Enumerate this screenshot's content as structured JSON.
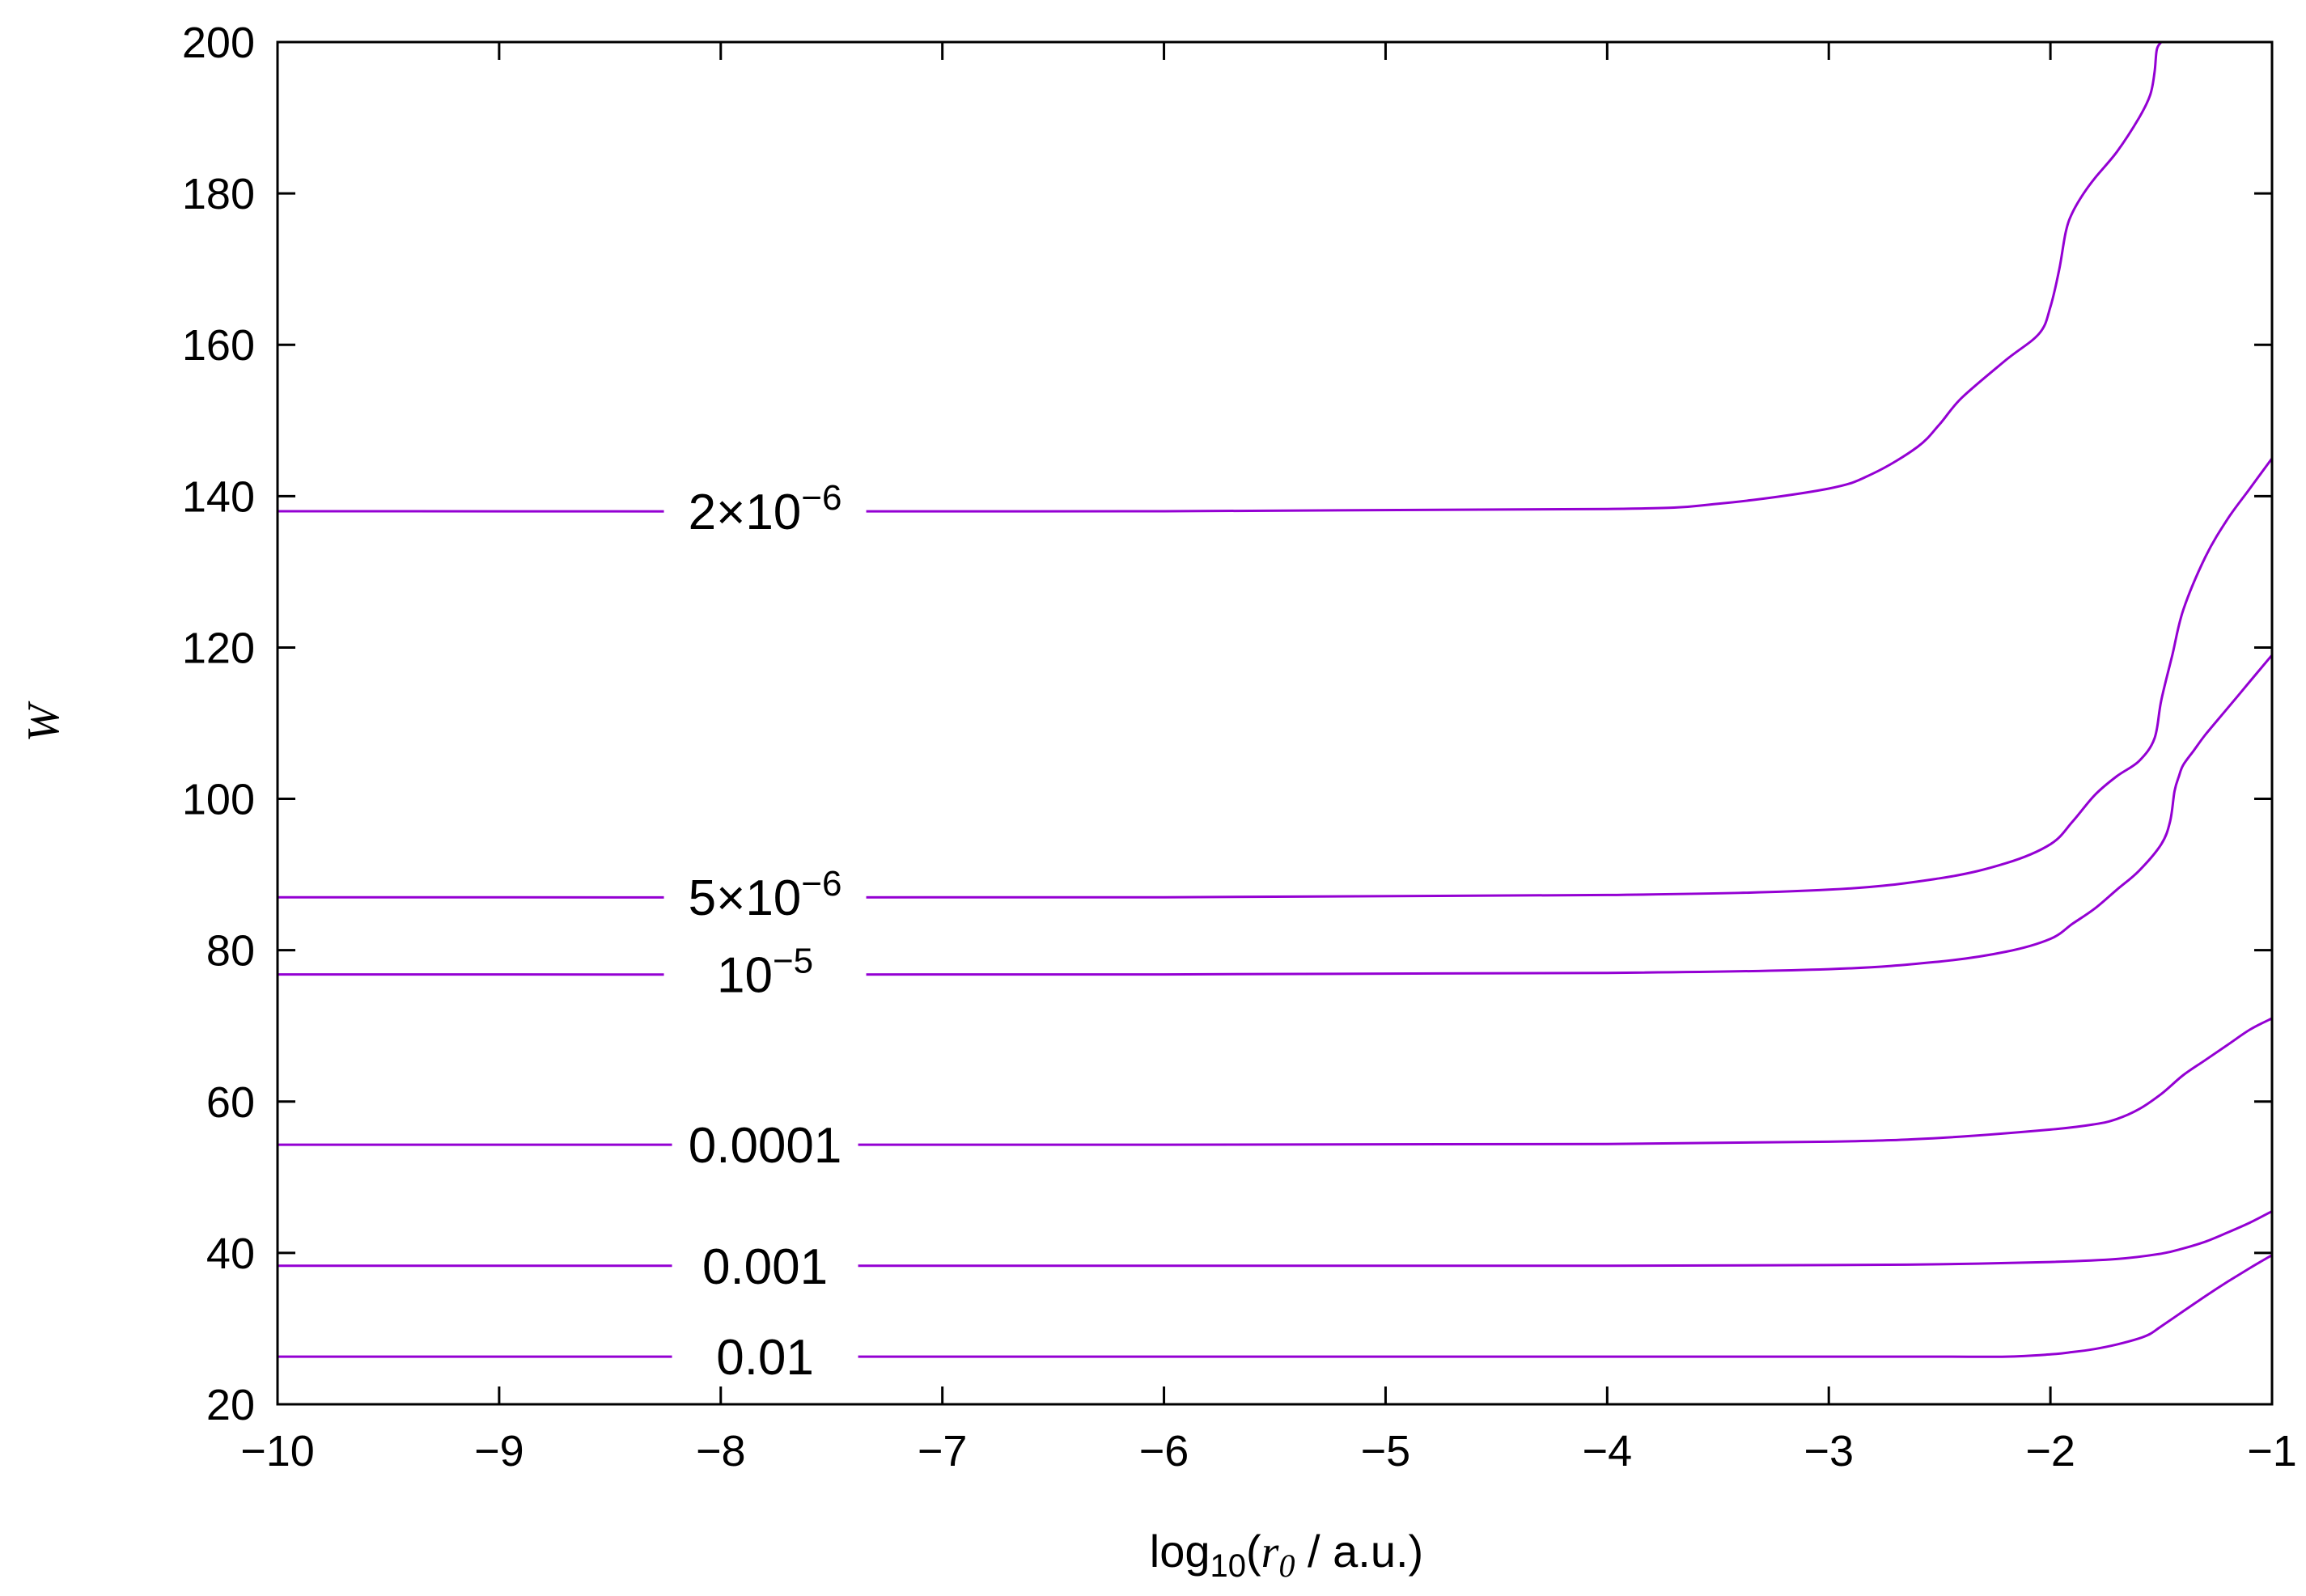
{
  "chart_data": {
    "type": "line",
    "xlabel": "log10(r0 / a.u.)",
    "xlabel_parts": {
      "pre": "log",
      "sub": "10",
      "open": "(",
      "var": "r",
      "varsub": "0",
      "post": " / a.u.)"
    },
    "ylabel": "W",
    "xlim": [
      -10,
      -1
    ],
    "ylim": [
      20,
      200
    ],
    "x_ticks": [
      -10,
      -9,
      -8,
      -7,
      -6,
      -5,
      -4,
      -3,
      -2,
      -1
    ],
    "x_tick_labels": [
      "−10",
      "−9",
      "−8",
      "−7",
      "−6",
      "−5",
      "−4",
      "−3",
      "−2",
      "−1"
    ],
    "y_ticks": [
      20,
      40,
      60,
      80,
      100,
      120,
      140,
      160,
      180,
      200
    ],
    "y_tick_labels": [
      "20",
      "40",
      "60",
      "80",
      "100",
      "120",
      "140",
      "160",
      "180",
      "200"
    ],
    "grid": false,
    "line_color": "#9400d3",
    "series": [
      {
        "label": {
          "base": "2×10",
          "exp": "−6"
        },
        "label_at": [
          -7.8,
          138
        ],
        "x": [
          -10,
          -6,
          -4,
          -3.5,
          -3,
          -2.8,
          -2.6,
          -2.5,
          -2.4,
          -2.2,
          -2.05,
          -2.0,
          -1.96,
          -1.93,
          -1.9,
          -1.85,
          -1.8,
          -1.7,
          -1.6,
          -1.55,
          -1.53,
          -1.52,
          -1.5
        ],
        "y": [
          138,
          138,
          138.3,
          139,
          141,
          143,
          146.5,
          149.5,
          153,
          158,
          161.5,
          165,
          170,
          175,
          177.5,
          180,
          182,
          185.5,
          190,
          193,
          196,
          199,
          200
        ]
      },
      {
        "label": {
          "base": "5×10",
          "exp": "−6"
        },
        "label_at": [
          -7.8,
          87
        ],
        "x": [
          -10,
          -6,
          -4,
          -3,
          -2.5,
          -2.2,
          -2.0,
          -1.9,
          -1.8,
          -1.7,
          -1.6,
          -1.53,
          -1.5,
          -1.45,
          -1.4,
          -1.3,
          -1.2,
          -1.1,
          -1.0
        ],
        "y": [
          87,
          87,
          87.3,
          88,
          89.5,
          91.5,
          94,
          97,
          100.5,
          103,
          105,
          108,
          113,
          119,
          125,
          132,
          137,
          141,
          145
        ]
      },
      {
        "label": {
          "base": "10",
          "exp": "−5"
        },
        "label_at": [
          -7.8,
          76.8
        ],
        "x": [
          -10,
          -6,
          -4,
          -3,
          -2.5,
          -2.2,
          -2.0,
          -1.9,
          -1.8,
          -1.7,
          -1.6,
          -1.5,
          -1.46,
          -1.44,
          -1.42,
          -1.4,
          -1.35,
          -1.3,
          -1.2,
          -1.1,
          -1.0
        ],
        "y": [
          76.8,
          76.8,
          77,
          77.5,
          78.5,
          79.8,
          81.5,
          83.5,
          85.5,
          88,
          90.5,
          94,
          97,
          101,
          103,
          104.5,
          106.5,
          108.5,
          112,
          115.5,
          119
        ]
      },
      {
        "label": {
          "base": "0.0001",
          "exp": ""
        },
        "label_at": [
          -7.8,
          54.3
        ],
        "x": [
          -10,
          -6,
          -4,
          -3,
          -2.5,
          -2.0,
          -1.8,
          -1.7,
          -1.6,
          -1.5,
          -1.4,
          -1.3,
          -1.2,
          -1.1,
          -1.0
        ],
        "y": [
          54.3,
          54.3,
          54.4,
          54.7,
          55.2,
          56.3,
          57,
          57.7,
          59,
          61,
          63.5,
          65.5,
          67.5,
          69.5,
          71
        ]
      },
      {
        "label": {
          "base": "0.001",
          "exp": ""
        },
        "label_at": [
          -7.8,
          38.3
        ],
        "x": [
          -10,
          -6,
          -4,
          -3,
          -2.5,
          -2.0,
          -1.7,
          -1.5,
          -1.4,
          -1.3,
          -1.2,
          -1.1,
          -1.0
        ],
        "y": [
          38.3,
          38.3,
          38.3,
          38.4,
          38.5,
          38.8,
          39.2,
          39.9,
          40.6,
          41.5,
          42.7,
          44,
          45.5
        ]
      },
      {
        "label": {
          "base": "0.01",
          "exp": ""
        },
        "label_at": [
          -7.8,
          26.3
        ],
        "x": [
          -10,
          -6,
          -4,
          -3,
          -2.5,
          -2.2,
          -2.0,
          -1.9,
          -1.8,
          -1.7,
          -1.6,
          -1.55,
          -1.5,
          -1.4,
          -1.3,
          -1.2,
          -1.1,
          -1.0
        ],
        "y": [
          26.3,
          26.3,
          26.3,
          26.3,
          26.3,
          26.3,
          26.6,
          26.9,
          27.3,
          27.9,
          28.7,
          29.3,
          30.3,
          32.3,
          34.3,
          36.2,
          38,
          39.7
        ]
      }
    ]
  }
}
